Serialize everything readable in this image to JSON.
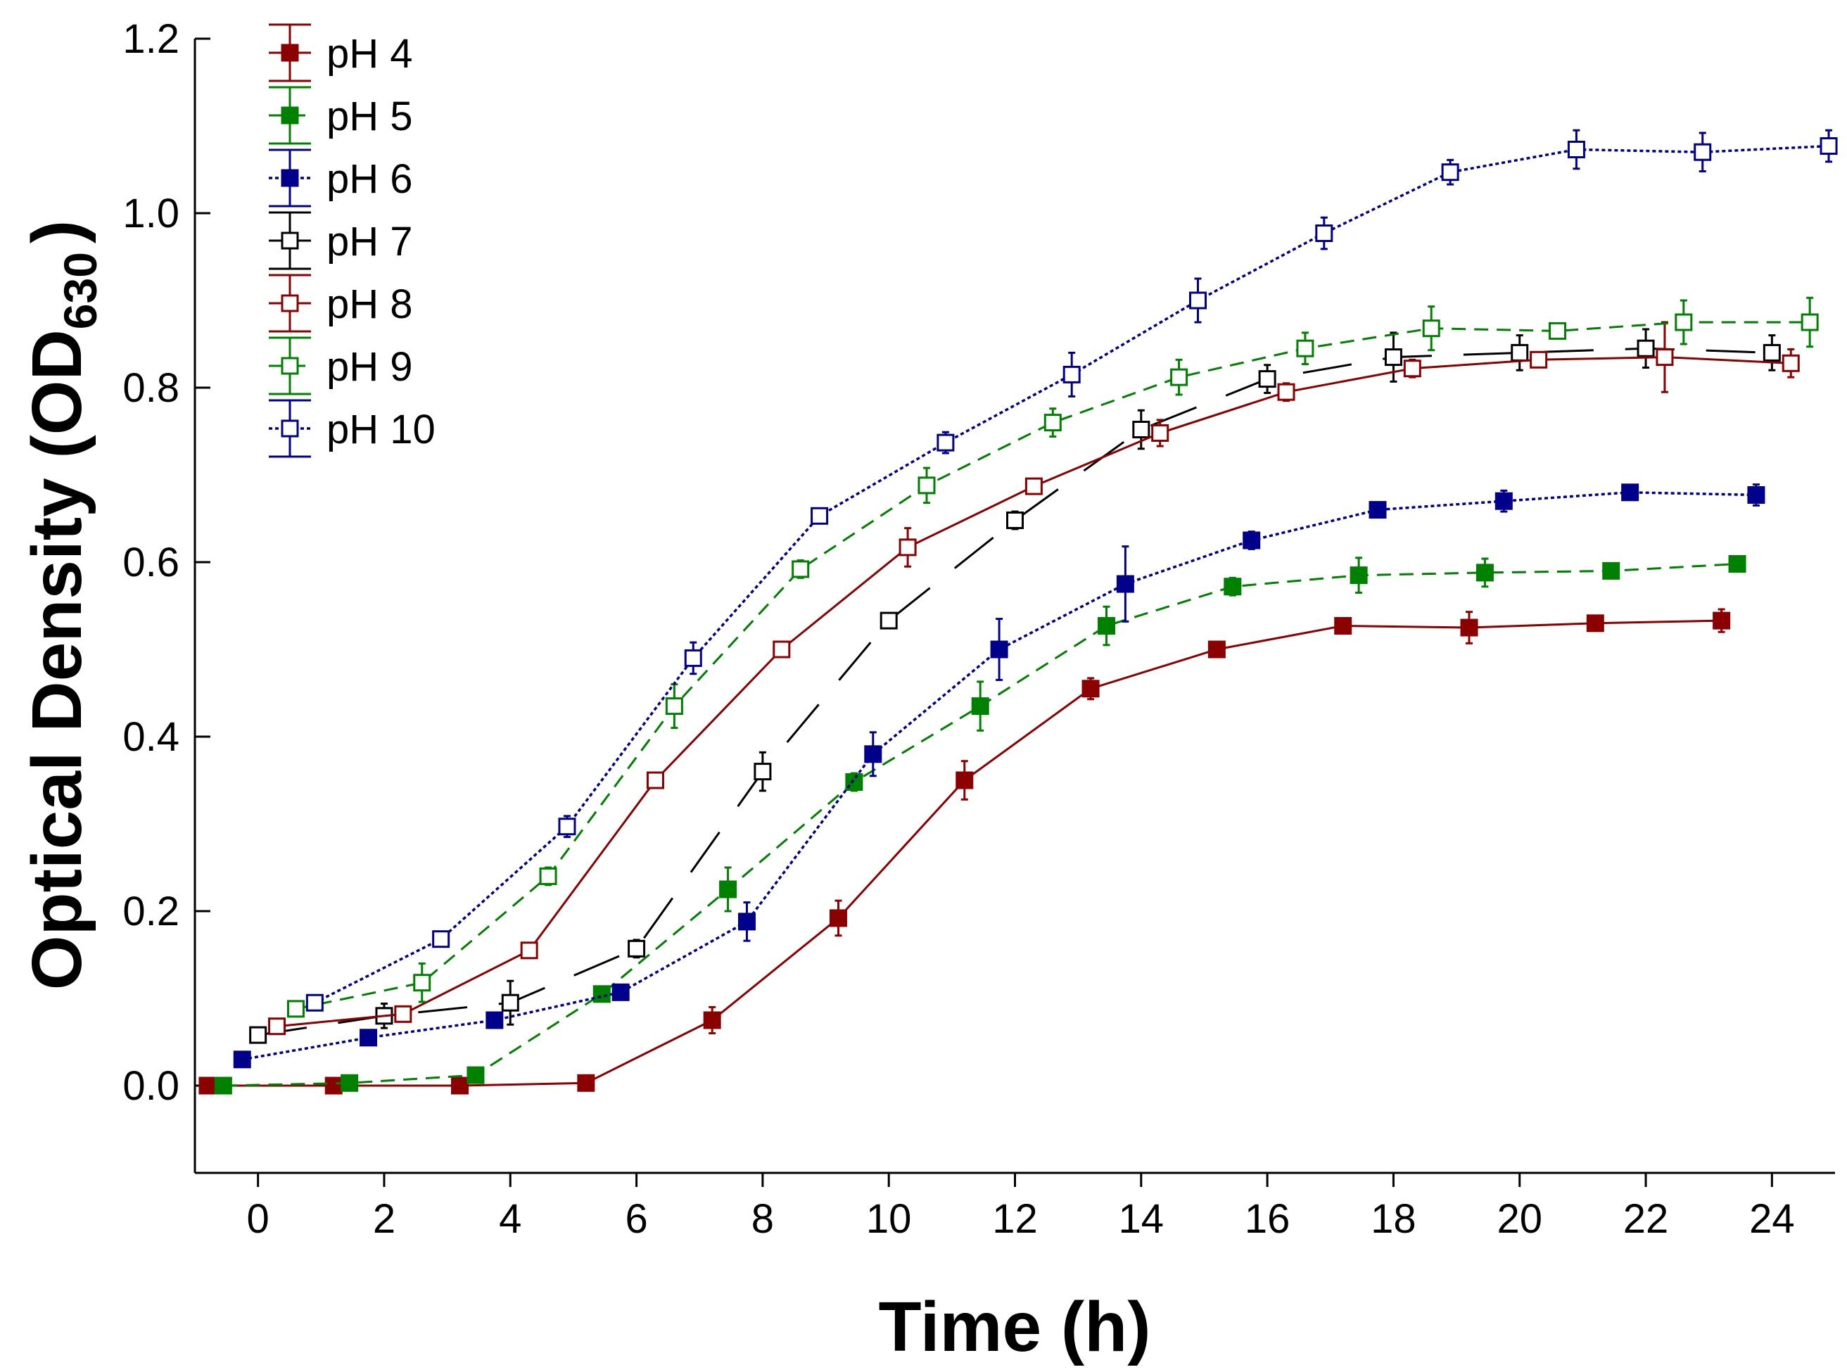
{
  "chart_data": {
    "type": "line",
    "title": "",
    "xlabel": "Time (h)",
    "ylabel_main": "Optical Density (OD",
    "ylabel_sub": "630",
    "ylabel_end": ")",
    "xlim": [
      -1,
      25
    ],
    "ylim": [
      -0.1,
      1.2
    ],
    "xticks": [
      0,
      2,
      4,
      6,
      8,
      10,
      12,
      14,
      16,
      18,
      20,
      22,
      24
    ],
    "xtick_labels": [
      "0",
      "2",
      "4",
      "6",
      "8",
      "10",
      "12",
      "14",
      "16",
      "18",
      "20",
      "22",
      "24"
    ],
    "yticks": [
      0.0,
      0.2,
      0.4,
      0.6,
      0.8,
      1.0,
      1.2
    ],
    "ytick_labels": [
      "0.0",
      "0.2",
      "0.4",
      "0.6",
      "0.8",
      "1.0",
      "1.2"
    ],
    "legend_position": "top-left",
    "grid": false,
    "series": [
      {
        "name": "pH 4",
        "color": "#8b0000",
        "marker": "filled-square",
        "dash": "solid",
        "x": [
          -0.8,
          1.2,
          3.2,
          5.2,
          7.2,
          9.2,
          11.2,
          13.2,
          15.2,
          17.2,
          19.2,
          21.2,
          23.2
        ],
        "y": [
          0.0,
          0.0,
          0.0,
          0.003,
          0.075,
          0.192,
          0.35,
          0.455,
          0.5,
          0.527,
          0.525,
          0.53,
          0.533
        ],
        "err": [
          0.003,
          0.003,
          0.003,
          0.003,
          0.015,
          0.02,
          0.022,
          0.012,
          0.008,
          0.006,
          0.018,
          0.006,
          0.013
        ]
      },
      {
        "name": "pH 5",
        "color": "#008000",
        "marker": "filled-square",
        "dash": "dashed",
        "x": [
          -0.55,
          1.45,
          3.45,
          5.45,
          7.45,
          9.45,
          11.45,
          13.45,
          15.45,
          17.45,
          19.45,
          21.45,
          23.45
        ],
        "y": [
          0.0,
          0.003,
          0.012,
          0.105,
          0.225,
          0.348,
          0.435,
          0.527,
          0.572,
          0.585,
          0.588,
          0.59,
          0.598
        ],
        "err": [
          0.003,
          0.003,
          0.004,
          0.006,
          0.025,
          0.01,
          0.028,
          0.022,
          0.01,
          0.02,
          0.016,
          0.008,
          0.006
        ]
      },
      {
        "name": "pH 6",
        "color": "#00008b",
        "marker": "filled-square",
        "dash": "dotted",
        "x": [
          -0.25,
          1.75,
          3.75,
          5.75,
          7.75,
          9.75,
          11.75,
          13.75,
          15.75,
          17.75,
          19.75,
          21.75,
          23.75
        ],
        "y": [
          0.03,
          0.055,
          0.075,
          0.107,
          0.188,
          0.38,
          0.5,
          0.575,
          0.625,
          0.66,
          0.67,
          0.68,
          0.677
        ],
        "err": [
          0.004,
          0.005,
          0.008,
          0.006,
          0.022,
          0.025,
          0.035,
          0.043,
          0.01,
          0.006,
          0.012,
          0.006,
          0.012
        ]
      },
      {
        "name": "pH 7",
        "color": "#000000",
        "marker": "open-square",
        "dash": "longdash",
        "x": [
          0.0,
          2.0,
          4.0,
          6.0,
          8.0,
          10.0,
          12.0,
          14.0,
          16.0,
          18.0,
          20.0,
          22.0,
          24.0
        ],
        "y": [
          0.058,
          0.08,
          0.095,
          0.157,
          0.36,
          0.533,
          0.648,
          0.752,
          0.81,
          0.835,
          0.84,
          0.845,
          0.84
        ],
        "err": [
          0.005,
          0.014,
          0.025,
          0.01,
          0.022,
          0.008,
          0.01,
          0.022,
          0.016,
          0.028,
          0.02,
          0.022,
          0.02
        ]
      },
      {
        "name": "pH 8",
        "color": "#8b0000",
        "marker": "open-square",
        "dash": "solid",
        "x": [
          0.3,
          2.3,
          4.3,
          6.3,
          8.3,
          10.3,
          12.3,
          14.3,
          16.3,
          18.3,
          20.3,
          22.3,
          24.3
        ],
        "y": [
          0.068,
          0.082,
          0.155,
          0.35,
          0.5,
          0.617,
          0.687,
          0.748,
          0.795,
          0.822,
          0.832,
          0.835,
          0.828
        ],
        "err": [
          0.006,
          0.006,
          0.008,
          0.008,
          0.006,
          0.022,
          0.006,
          0.015,
          0.01,
          0.01,
          0.006,
          0.04,
          0.016
        ]
      },
      {
        "name": "pH 9",
        "color": "#008000",
        "marker": "open-square",
        "dash": "dashed",
        "x": [
          0.6,
          2.6,
          4.6,
          6.6,
          8.6,
          10.6,
          12.6,
          14.6,
          16.6,
          18.6,
          20.6,
          22.6,
          24.6
        ],
        "y": [
          0.088,
          0.118,
          0.24,
          0.435,
          0.592,
          0.688,
          0.76,
          0.812,
          0.845,
          0.868,
          0.865,
          0.875,
          0.875
        ],
        "err": [
          0.006,
          0.022,
          0.01,
          0.025,
          0.01,
          0.02,
          0.016,
          0.02,
          0.018,
          0.025,
          0.008,
          0.025,
          0.028
        ]
      },
      {
        "name": "pH 10",
        "color": "#00008b",
        "marker": "open-square",
        "dash": "dotted",
        "x": [
          0.9,
          2.9,
          4.9,
          6.9,
          8.9,
          10.9,
          12.9,
          14.9,
          16.9,
          18.9,
          20.9,
          22.9,
          24.9
        ],
        "y": [
          0.095,
          0.168,
          0.297,
          0.49,
          0.653,
          0.737,
          0.815,
          0.9,
          0.977,
          1.047,
          1.073,
          1.07,
          1.077
        ],
        "err": [
          0.006,
          0.008,
          0.012,
          0.018,
          0.006,
          0.012,
          0.025,
          0.025,
          0.018,
          0.014,
          0.022,
          0.022,
          0.018
        ]
      }
    ]
  }
}
